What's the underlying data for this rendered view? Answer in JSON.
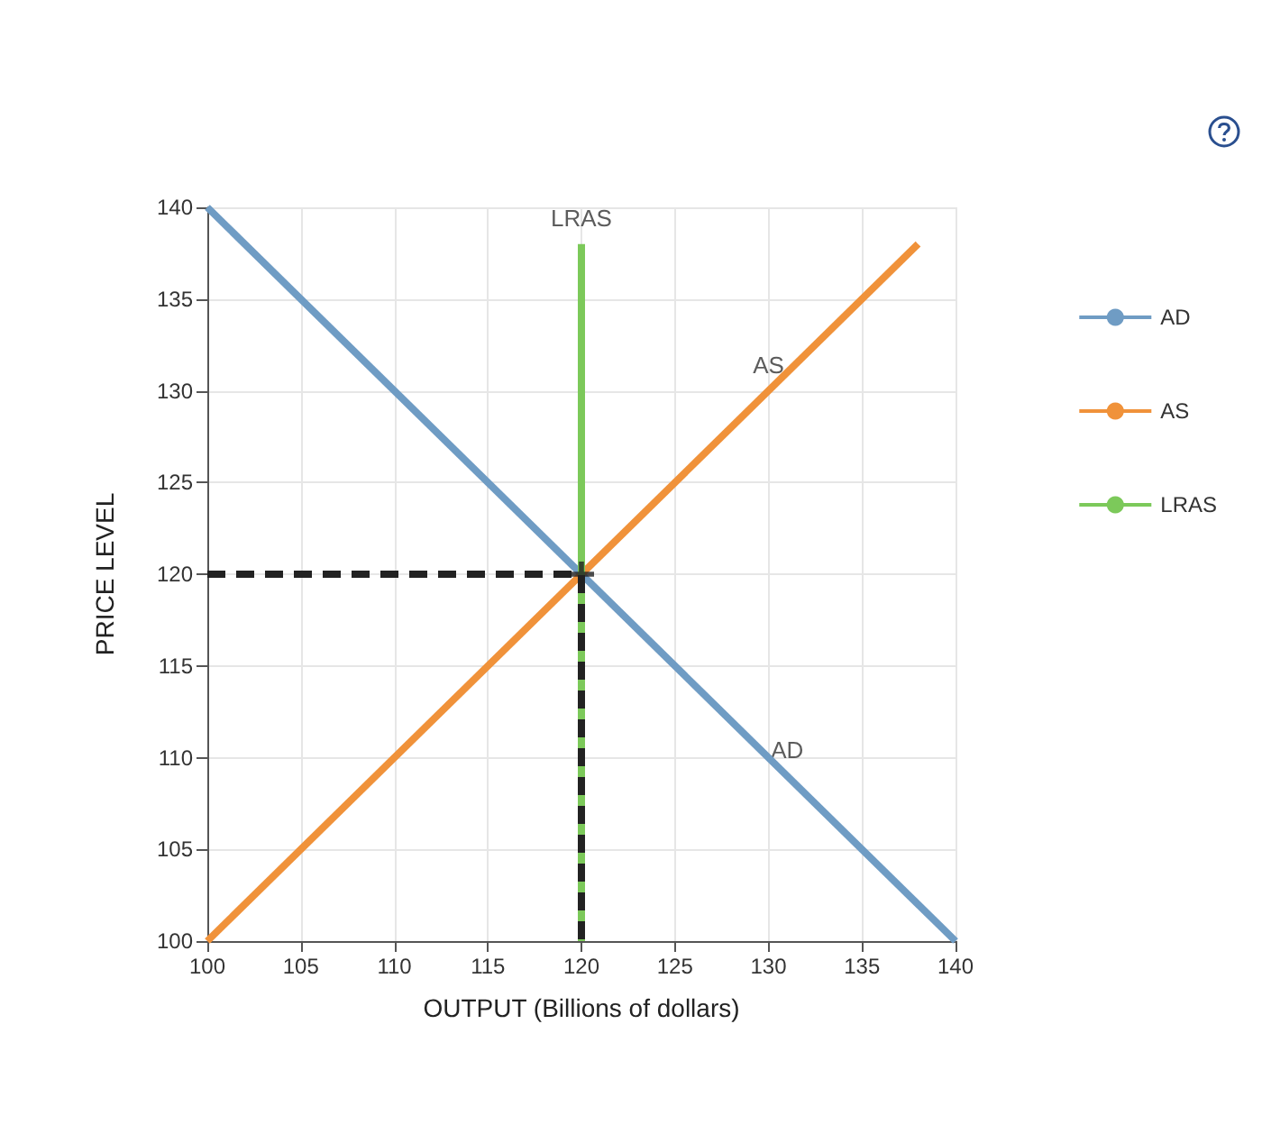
{
  "chart_data": {
    "type": "line",
    "xlabel": "OUTPUT (Billions of dollars)",
    "ylabel": "PRICE LEVEL",
    "xlim": [
      100,
      140
    ],
    "xticks": [
      100,
      105,
      110,
      115,
      120,
      125,
      130,
      135,
      140
    ],
    "ylim": [
      100,
      140
    ],
    "yticks": [
      100,
      105,
      110,
      115,
      120,
      125,
      130,
      135,
      140
    ],
    "grid": true,
    "legend": "right",
    "series": [
      {
        "name": "AD",
        "color": "#6f9cc4",
        "x": [
          100,
          140
        ],
        "values": [
          140,
          100
        ]
      },
      {
        "name": "AS",
        "color": "#f0923a",
        "x": [
          100,
          138
        ],
        "values": [
          100,
          138
        ]
      },
      {
        "name": "LRAS",
        "color": "#7cc95a",
        "x": [
          120,
          120
        ],
        "values": [
          100,
          138
        ]
      },
      {
        "color": "#222222",
        "x": [
          100,
          120,
          120
        ],
        "values": [
          120,
          120,
          100
        ],
        "line_style": "dashed"
      },
      {
        "type": "scatter",
        "color": "#222222",
        "x": [
          120
        ],
        "values": [
          120
        ],
        "marker": "cross"
      }
    ],
    "annotations": [
      {
        "text": "LRAS",
        "x": 120,
        "y": 138
      },
      {
        "text": "AS",
        "x": 130,
        "y": 130
      },
      {
        "text": "AD",
        "x": 131,
        "y": 109
      }
    ]
  }
}
